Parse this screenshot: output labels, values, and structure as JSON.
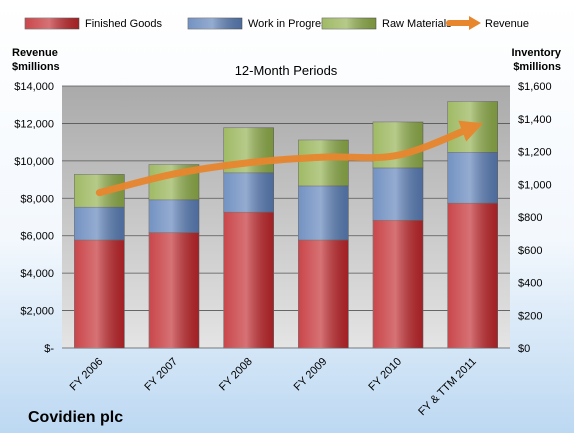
{
  "chart_data": {
    "type": "bar",
    "stacked": true,
    "title": "12-Month Periods",
    "company": "Covidien plc",
    "categories": [
      "FY 2006",
      "FY 2007",
      "FY 2008",
      "FY 2009",
      "FY 2010",
      "FY & TTM 2011"
    ],
    "series": [
      {
        "name": "Finished Goods",
        "axis": "right",
        "color": "#c0262b",
        "values": [
          660,
          705,
          830,
          660,
          780,
          885
        ]
      },
      {
        "name": "Work in Progress",
        "axis": "right",
        "color": "#5b7fb8",
        "values": [
          200,
          200,
          240,
          330,
          320,
          310
        ]
      },
      {
        "name": "Raw Materials",
        "axis": "right",
        "color": "#8fae4a",
        "values": [
          200,
          215,
          275,
          280,
          280,
          310
        ]
      },
      {
        "name": "Revenue",
        "axis": "left",
        "type": "line",
        "color": "#e8862e",
        "values": [
          8300,
          9300,
          9900,
          10200,
          10300,
          11800
        ]
      }
    ],
    "yleft": {
      "label_line1": "Revenue",
      "label_line2": "$millions",
      "ylim": [
        0,
        14000
      ],
      "ticks": [
        "$-",
        "$2,000",
        "$4,000",
        "$6,000",
        "$8,000",
        "$10,000",
        "$12,000",
        "$14,000"
      ]
    },
    "yright": {
      "label_line1": "Inventory",
      "label_line2": "$millions",
      "ylim": [
        0,
        1600
      ],
      "ticks": [
        "$0",
        "$200",
        "$400",
        "$600",
        "$800",
        "$1,000",
        "$1,200",
        "$1,400",
        "$1,600"
      ]
    },
    "grid": true,
    "legend_position": "top"
  }
}
